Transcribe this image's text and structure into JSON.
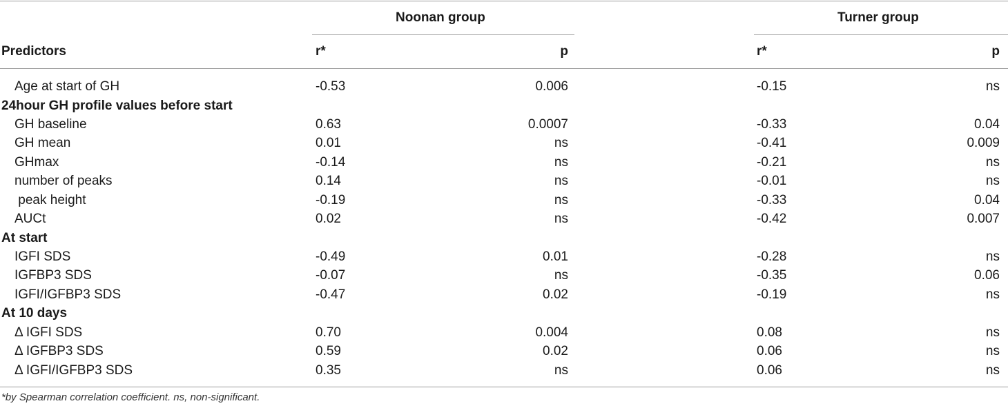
{
  "header": {
    "predictors": "Predictors",
    "noonan_group": "Noonan group",
    "turner_group": "Turner group",
    "noonan_r": "r*",
    "noonan_p": "p",
    "turner_r": "r*",
    "turner_p": "p"
  },
  "rows": {
    "age": {
      "label": "Age at start of GH",
      "noonan_r": "-0.53",
      "noonan_p": "0.006",
      "turner_r": "-0.15",
      "turner_p": "ns"
    },
    "section_24h": "24hour GH profile values before start",
    "gh_baseline": {
      "label": "GH baseline",
      "noonan_r": "0.63",
      "noonan_p": "0.0007",
      "turner_r": "-0.33",
      "turner_p": "0.04"
    },
    "gh_mean": {
      "label": "GH mean",
      "noonan_r": "0.01",
      "noonan_p": "ns",
      "turner_r": "-0.41",
      "turner_p": "0.009"
    },
    "ghmax": {
      "label": "GHmax",
      "noonan_r": "-0.14",
      "noonan_p": "ns",
      "turner_r": "-0.21",
      "turner_p": "ns"
    },
    "num_peaks": {
      "label": "number of peaks",
      "noonan_r": "0.14",
      "noonan_p": "ns",
      "turner_r": "-0.01",
      "turner_p": "ns"
    },
    "peak_height": {
      "label": " peak height",
      "noonan_r": "-0.19",
      "noonan_p": "ns",
      "turner_r": "-0.33",
      "turner_p": "0.04"
    },
    "auct": {
      "label": "AUCt",
      "noonan_r": "0.02",
      "noonan_p": "ns",
      "turner_r": "-0.42",
      "turner_p": "0.007"
    },
    "section_start": "At start",
    "igfi_sds": {
      "label": "IGFI SDS",
      "noonan_r": "-0.49",
      "noonan_p": "0.01",
      "turner_r": "-0.28",
      "turner_p": "ns"
    },
    "igfbp3_sds": {
      "label": "IGFBP3 SDS",
      "noonan_r": "-0.07",
      "noonan_p": "ns",
      "turner_r": "-0.35",
      "turner_p": "0.06"
    },
    "ratio_sds": {
      "label": "IGFI/IGFBP3 SDS",
      "noonan_r": "-0.47",
      "noonan_p": "0.02",
      "turner_r": "-0.19",
      "turner_p": "ns"
    },
    "section_10d": "At 10 days",
    "d_igfi_sds": {
      "label": "Δ IGFI SDS",
      "noonan_r": "0.70",
      "noonan_p": "0.004",
      "turner_r": "0.08",
      "turner_p": "ns"
    },
    "d_igfbp3_sds": {
      "label": "Δ IGFBP3 SDS",
      "noonan_r": "0.59",
      "noonan_p": "0.02",
      "turner_r": "0.06",
      "turner_p": "ns"
    },
    "d_ratio_sds": {
      "label": "Δ IGFI/IGFBP3 SDS",
      "noonan_r": "0.35",
      "noonan_p": "ns",
      "turner_r": "0.06",
      "turner_p": "ns"
    }
  },
  "footnote": "*by Spearman correlation coefficient. ns, non-significant."
}
